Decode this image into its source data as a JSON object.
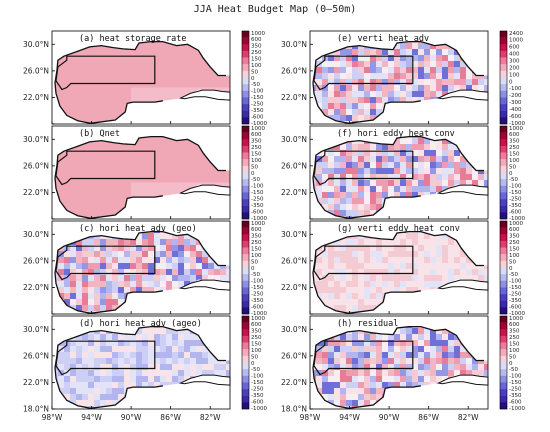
{
  "title": "JJA Heat Budget Map (0–50m)",
  "chart_data": {
    "type": "heatmap",
    "xlim": [
      "98°W",
      "80°W"
    ],
    "ylim": [
      "18.0°N",
      "32°N"
    ],
    "lat_ticks": [
      "30.0°N",
      "26.0°N",
      "22.0°N",
      "18.0°N"
    ],
    "lon_ticks": [
      "98°W",
      "94°W",
      "90°W",
      "86°W",
      "82°W"
    ],
    "colorbar_standard": [
      "1000",
      "600",
      "350",
      "250",
      "150",
      "100",
      "50",
      "0",
      "-50",
      "-100",
      "-150",
      "-250",
      "-350",
      "-600",
      "-1000"
    ],
    "colorbar_adv": [
      "2400",
      "1000",
      "600",
      "400",
      "300",
      "200",
      "100",
      "0",
      "-100",
      "-200",
      "-300",
      "-400",
      "-600",
      "-1000"
    ],
    "panels": [
      {
        "label": "(a) heat storage rate",
        "pattern": "uniform-positive",
        "colorbar": "standard"
      },
      {
        "label": "(b) Qnet",
        "pattern": "uniform-positive",
        "colorbar": "standard"
      },
      {
        "label": "(c) hori heat adv (geo)",
        "pattern": "noisy-mixed",
        "colorbar": "standard"
      },
      {
        "label": "(d) hori heat adv (ageo)",
        "pattern": "weak-negative",
        "colorbar": "standard"
      },
      {
        "label": "(e) verti heat adv",
        "pattern": "noisy-mixed",
        "colorbar": "adv"
      },
      {
        "label": "(f) hori eddy heat conv",
        "pattern": "noisy-mixed",
        "colorbar": "standard"
      },
      {
        "label": "(g) verti eddy heat conv",
        "pattern": "weak-positive",
        "colorbar": "standard"
      },
      {
        "label": "(h) residual",
        "pattern": "noisy-mixed",
        "colorbar": "standard"
      }
    ]
  }
}
